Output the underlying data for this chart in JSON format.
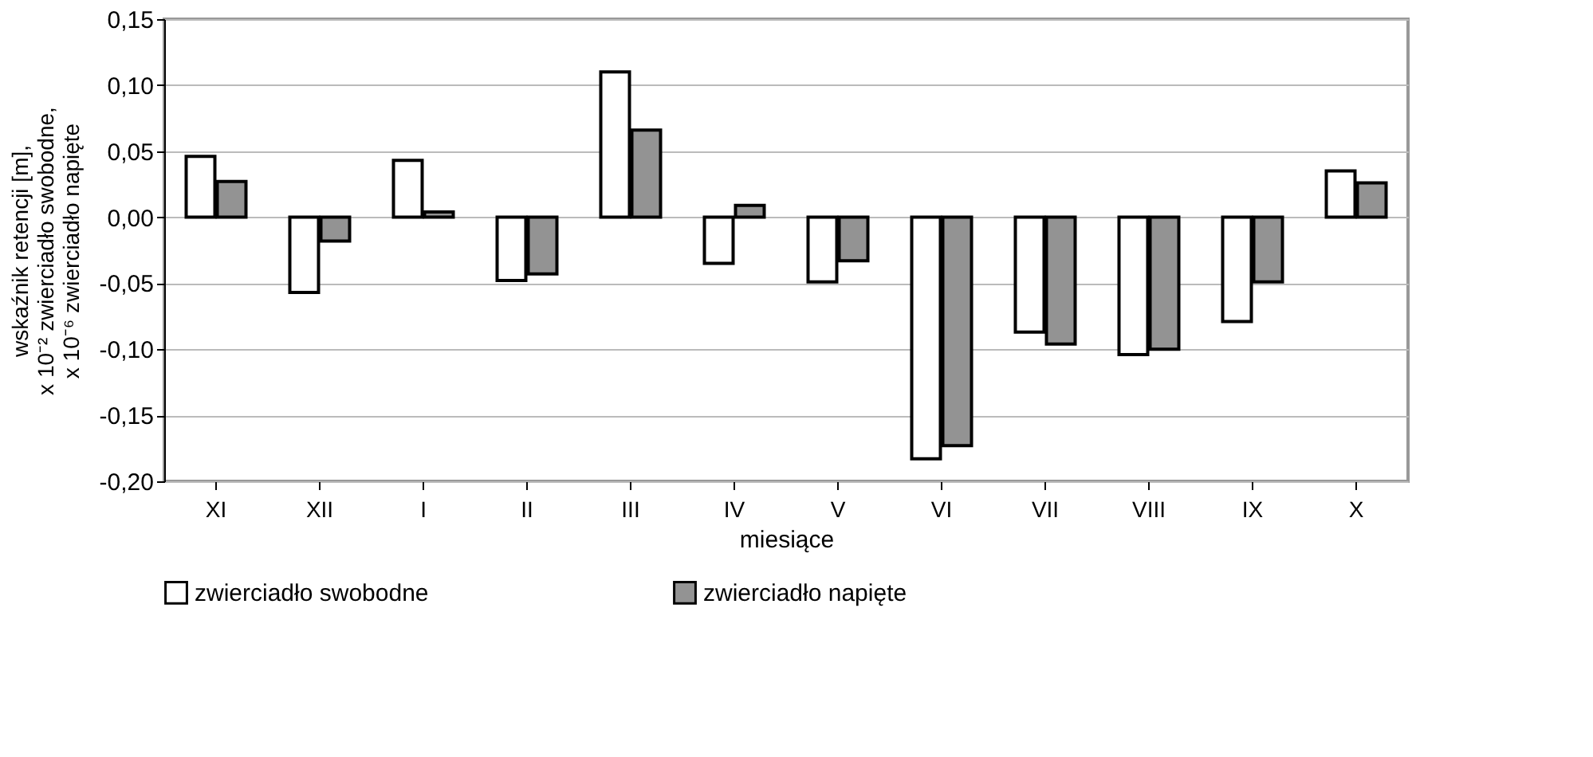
{
  "chart_data": {
    "type": "bar",
    "xlabel": "miesiące",
    "ylabel": [
      "wskaźnik retencji [m],",
      "x 10⁻² zwierciadło swobodne,",
      "x 10⁻⁶ zwierciadło napięte"
    ],
    "categories": [
      "XI",
      "XII",
      "I",
      "II",
      "III",
      "IV",
      "V",
      "VI",
      "VII",
      "VIII",
      "IX",
      "X"
    ],
    "series": [
      {
        "name": "zwierciadło swobodne",
        "color": "#ffffff",
        "values": [
          0.046,
          -0.057,
          0.043,
          -0.048,
          0.11,
          -0.035,
          -0.049,
          -0.183,
          -0.087,
          -0.104,
          -0.079,
          0.035
        ]
      },
      {
        "name": "zwierciadło napięte",
        "color": "#939393",
        "values": [
          0.027,
          -0.018,
          0.004,
          -0.043,
          0.066,
          0.009,
          -0.033,
          -0.173,
          -0.096,
          -0.1,
          -0.049,
          0.026
        ]
      }
    ],
    "ylim": [
      -0.2,
      0.15
    ],
    "yticks": [
      {
        "value": -0.2,
        "label": "-0,20"
      },
      {
        "value": -0.15,
        "label": "-0,15"
      },
      {
        "value": -0.1,
        "label": "-0,10"
      },
      {
        "value": -0.05,
        "label": "-0,05"
      },
      {
        "value": 0,
        "label": "0,00"
      },
      {
        "value": 0.05,
        "label": "0,05"
      },
      {
        "value": 0.1,
        "label": "0,10"
      },
      {
        "value": 0.15,
        "label": "0,15"
      }
    ],
    "grid": "y",
    "legend": "bottom"
  }
}
